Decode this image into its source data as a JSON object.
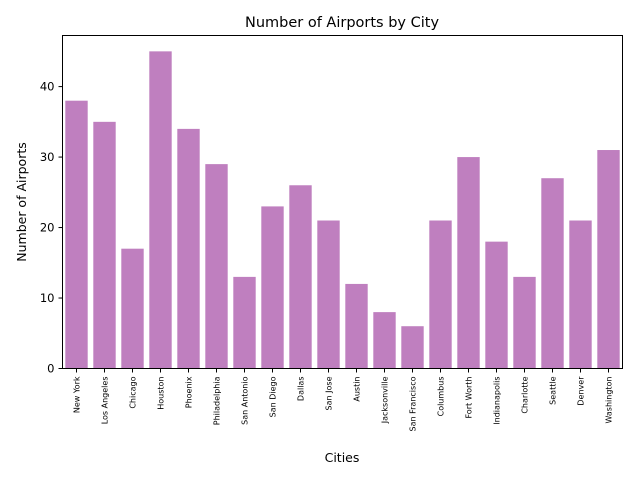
{
  "chart_data": {
    "type": "bar",
    "title": "Number of Airports by City",
    "xlabel": "Cities",
    "ylabel": "Number of Airports",
    "categories": [
      "New York",
      "Los Angeles",
      "Chicago",
      "Houston",
      "Phoenix",
      "Philadelphia",
      "San Antonio",
      "San Diego",
      "Dallas",
      "San Jose",
      "Austin",
      "Jacksonville",
      "San Francisco",
      "Columbus",
      "Fort Worth",
      "Indianapolis",
      "Charlotte",
      "Seattle",
      "Denver",
      "Washington"
    ],
    "values": [
      38,
      35,
      17,
      45,
      34,
      29,
      13,
      23,
      26,
      21,
      12,
      8,
      6,
      21,
      30,
      18,
      13,
      27,
      21,
      31
    ],
    "ylim": [
      0,
      47.25
    ],
    "yticks": [
      0,
      10,
      20,
      30,
      40
    ],
    "bar_color": "#bf7fbf",
    "grid": false,
    "legend": "none"
  }
}
